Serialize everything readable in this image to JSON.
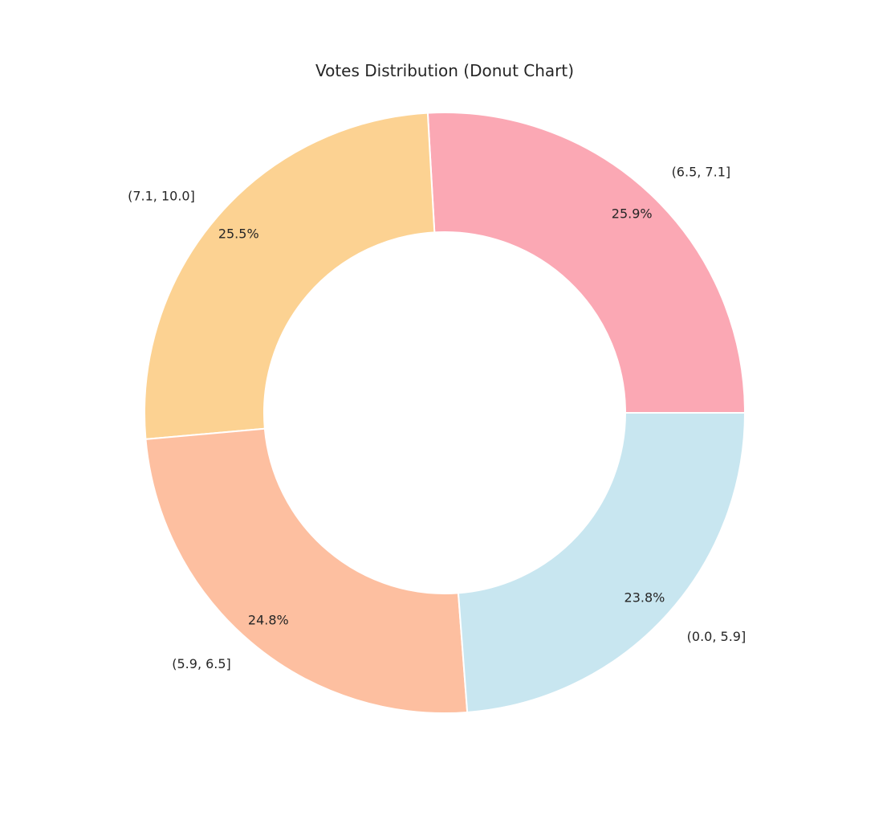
{
  "chart_data": {
    "type": "pie",
    "title": "Votes Distribution (Donut Chart)",
    "donut": true,
    "start_angle_deg": 0,
    "direction": "counterclockwise",
    "slices": [
      {
        "label": "(6.5, 7.1]",
        "value": 25.9,
        "pct_label": "25.9%",
        "color": "#fba8b4"
      },
      {
        "label": "(7.1, 10.0]",
        "value": 25.5,
        "pct_label": "25.5%",
        "color": "#fcd292"
      },
      {
        "label": "(5.9, 6.5]",
        "value": 24.8,
        "pct_label": "24.8%",
        "color": "#fdbfa0"
      },
      {
        "label": "(0.0, 5.9]",
        "value": 23.8,
        "pct_label": "23.8%",
        "color": "#c8e6f0"
      }
    ],
    "slice_edge_color": "#ffffff"
  }
}
